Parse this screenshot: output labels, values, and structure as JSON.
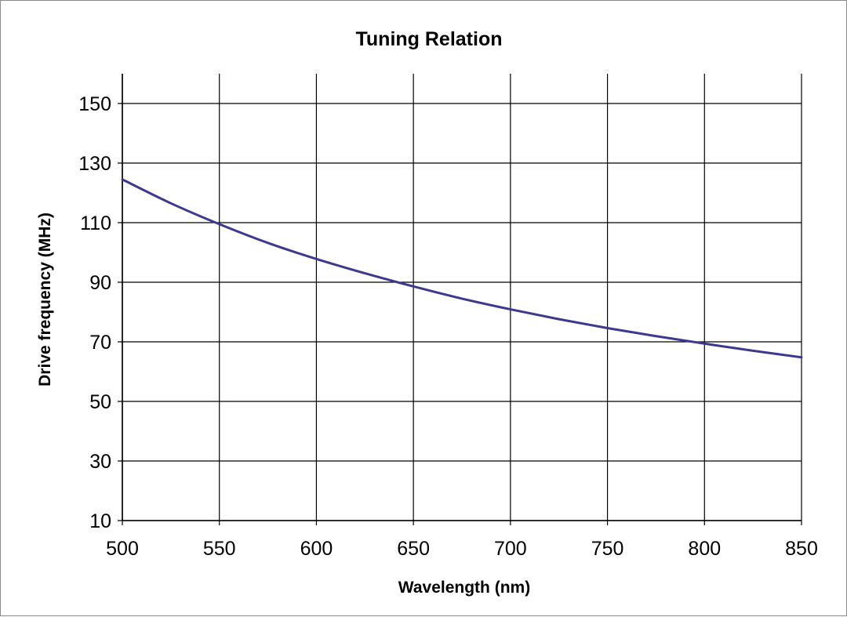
{
  "chart_data": {
    "type": "line",
    "title": "Tuning Relation",
    "xlabel": "Wavelength (nm)",
    "ylabel": "Drive frequency (MHz)",
    "xlim": [
      500,
      850
    ],
    "ylim": [
      10,
      160
    ],
    "x_ticks": [
      "500",
      "550",
      "600",
      "650",
      "700",
      "750",
      "800",
      "850"
    ],
    "y_ticks": [
      "10",
      "30",
      "50",
      "70",
      "90",
      "110",
      "130",
      "150"
    ],
    "grid": true,
    "legend": "none",
    "series": [
      {
        "color": "#3b3a8f",
        "x": [
          500,
          525,
          550,
          575,
          600,
          625,
          650,
          675,
          700,
          725,
          750,
          775,
          800,
          825,
          850
        ],
        "y": [
          124.5,
          116.5,
          109.5,
          103.2,
          97.8,
          93.0,
          88.6,
          84.5,
          80.9,
          77.6,
          74.6,
          71.9,
          69.4,
          67.0,
          64.8
        ]
      }
    ]
  }
}
